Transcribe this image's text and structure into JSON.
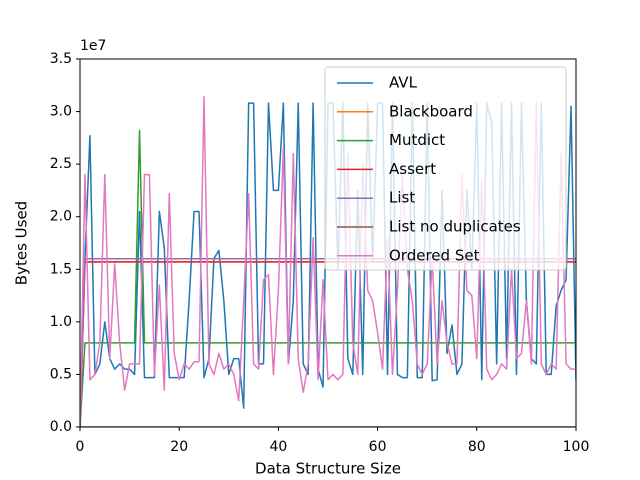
{
  "chart_data": {
    "type": "line",
    "x_label": "Data Structure Size",
    "y_label": "Bytes Used",
    "y_offset_label": "1e7",
    "xlim": [
      0,
      100
    ],
    "xticks": [
      0,
      20,
      40,
      60,
      80,
      100
    ],
    "ylim": [
      0,
      3.5
    ],
    "yticks": [
      {
        "value": 0,
        "label": "0.0"
      },
      0.5,
      {
        "value": 1,
        "label": "1.0"
      },
      1.5,
      {
        "value": 2,
        "label": "2.0"
      },
      2.5,
      {
        "value": 3,
        "label": "3.0"
      },
      3.5
    ],
    "legend": "upper right",
    "x": [
      0,
      1,
      2,
      3,
      4,
      5,
      6,
      7,
      8,
      9,
      10,
      11,
      12,
      13,
      14,
      15,
      16,
      17,
      18,
      19,
      20,
      21,
      22,
      23,
      24,
      25,
      26,
      27,
      28,
      29,
      30,
      31,
      32,
      33,
      34,
      35,
      36,
      37,
      38,
      39,
      40,
      41,
      42,
      43,
      44,
      45,
      46,
      47,
      48,
      49,
      50,
      51,
      52,
      53,
      54,
      55,
      56,
      57,
      58,
      59,
      60,
      61,
      62,
      63,
      64,
      65,
      66,
      67,
      68,
      69,
      70,
      71,
      72,
      73,
      74,
      75,
      76,
      77,
      78,
      79,
      80,
      81,
      82,
      83,
      84,
      85,
      86,
      87,
      88,
      89,
      90,
      91,
      92,
      93,
      94,
      95,
      96,
      97,
      98,
      99,
      100
    ],
    "series": [
      {
        "name": "AVL",
        "color": "#1f77b4",
        "values": [
          0,
          1.6,
          2.77,
          0.5,
          0.6,
          1.0,
          0.65,
          0.55,
          0.6,
          0.55,
          0.55,
          0.5,
          2.05,
          0.47,
          0.47,
          0.47,
          2.05,
          1.7,
          0.47,
          0.47,
          0.47,
          0.47,
          1.2,
          2.05,
          2.05,
          0.47,
          0.65,
          1.6,
          1.68,
          1.2,
          0.5,
          0.65,
          0.65,
          0.18,
          3.08,
          3.08,
          0.6,
          0.6,
          3.08,
          2.25,
          2.25,
          3.08,
          0.6,
          1.2,
          3.08,
          0.6,
          0.5,
          3.08,
          0.55,
          0.38,
          3.08,
          3.08,
          1.5,
          3.08,
          0.65,
          0.5,
          2.25,
          0.5,
          3.08,
          1.57,
          3.08,
          3.08,
          0.5,
          3.08,
          0.5,
          0.47,
          0.47,
          3.08,
          0.47,
          0.47,
          3.08,
          0.44,
          0.45,
          2.25,
          0.7,
          0.97,
          0.5,
          0.6,
          2.25,
          1.5,
          3.08,
          0.45,
          3.08,
          2.9,
          0.6,
          3.08,
          0.65,
          3.08,
          0.5,
          3.08,
          1.2,
          0.65,
          0.6,
          3.08,
          0.5,
          0.5,
          1.15,
          1.3,
          1.4,
          3.05,
          0.45
        ]
      },
      {
        "name": "Blackboard",
        "color": "#ff7f0e",
        "values": [
          0,
          1.57,
          1.57,
          1.57,
          1.57,
          1.57,
          1.57,
          1.57,
          1.57,
          1.57,
          1.57,
          1.57,
          1.57,
          1.57,
          1.57,
          1.57,
          1.57,
          1.57,
          1.57,
          1.57,
          1.57,
          1.57,
          1.57,
          1.57,
          1.57,
          1.57,
          1.57,
          1.57,
          1.57,
          1.57,
          1.57,
          1.57,
          1.57,
          1.57,
          1.57,
          1.57,
          1.57,
          1.57,
          1.57,
          1.57,
          1.57,
          1.57,
          1.57,
          1.57,
          1.57,
          1.57,
          1.57,
          1.57,
          1.57,
          1.57,
          1.57,
          1.57,
          1.57,
          1.57,
          1.57,
          1.57,
          1.57,
          1.57,
          1.57,
          1.57,
          1.57,
          1.57,
          1.57,
          1.57,
          1.57,
          1.57,
          1.57,
          1.57,
          1.57,
          1.57,
          1.57,
          1.57,
          1.57,
          1.57,
          1.57,
          1.57,
          1.57,
          1.57,
          1.57,
          1.57,
          1.57,
          1.57,
          1.57,
          1.57,
          1.57,
          1.57,
          1.57,
          1.57,
          1.57,
          1.57,
          1.57,
          1.57,
          1.57,
          1.57,
          1.57,
          1.57,
          1.57,
          1.57,
          1.57,
          1.57,
          1.57
        ]
      },
      {
        "name": "Mutdict",
        "color": "#2ca02c",
        "values": [
          0,
          0.8,
          0.8,
          0.8,
          0.8,
          0.8,
          0.8,
          0.8,
          0.8,
          0.8,
          0.8,
          0.8,
          2.82,
          0.8,
          0.8,
          0.8,
          0.8,
          0.8,
          0.8,
          0.8,
          0.8,
          0.8,
          0.8,
          0.8,
          0.8,
          0.8,
          0.8,
          0.8,
          0.8,
          0.8,
          0.8,
          0.8,
          0.8,
          0.8,
          0.8,
          0.8,
          0.8,
          0.8,
          0.8,
          0.8,
          0.8,
          0.8,
          0.8,
          0.8,
          0.8,
          0.8,
          0.8,
          0.8,
          0.8,
          0.8,
          0.8,
          0.8,
          0.8,
          0.8,
          0.8,
          0.8,
          0.8,
          0.8,
          0.8,
          0.8,
          0.8,
          0.8,
          0.8,
          0.8,
          0.8,
          0.8,
          0.8,
          0.8,
          0.8,
          0.8,
          0.8,
          0.8,
          0.8,
          0.8,
          0.8,
          0.8,
          0.8,
          0.8,
          0.8,
          0.8,
          0.8,
          0.8,
          0.8,
          0.8,
          0.8,
          0.8,
          0.8,
          0.8,
          0.8,
          0.8,
          0.8,
          0.8,
          0.8,
          0.8,
          0.8,
          0.8,
          0.8,
          0.8,
          0.8,
          0.8,
          0.8
        ]
      },
      {
        "name": "Assert",
        "color": "#d62728",
        "values": [
          0,
          1.57,
          1.57,
          1.57,
          1.57,
          1.57,
          1.57,
          1.57,
          1.57,
          1.57,
          1.57,
          1.57,
          1.57,
          1.57,
          1.57,
          1.57,
          1.57,
          1.57,
          1.57,
          1.57,
          1.57,
          1.57,
          1.57,
          1.57,
          1.57,
          1.57,
          1.57,
          1.57,
          1.57,
          1.57,
          1.57,
          1.57,
          1.57,
          1.57,
          1.57,
          1.57,
          1.57,
          1.57,
          1.57,
          1.57,
          1.57,
          1.57,
          1.57,
          1.57,
          1.57,
          1.57,
          1.57,
          1.57,
          1.57,
          1.57,
          1.57,
          1.57,
          1.57,
          1.57,
          1.57,
          1.57,
          1.57,
          1.57,
          1.57,
          1.57,
          1.57,
          1.57,
          1.57,
          1.57,
          1.57,
          1.57,
          1.57,
          1.57,
          1.57,
          1.57,
          1.57,
          1.57,
          1.57,
          1.57,
          1.57,
          1.57,
          1.57,
          1.57,
          1.57,
          1.57,
          1.57,
          1.57,
          1.57,
          1.57,
          1.57,
          1.57,
          1.57,
          1.57,
          1.57,
          1.57,
          1.57,
          1.57,
          1.57,
          1.57,
          1.57,
          1.57,
          1.57,
          1.57,
          1.57,
          1.57,
          1.57
        ]
      },
      {
        "name": "List",
        "color": "#9467bd",
        "values": [
          0,
          1.6,
          1.6,
          1.6,
          1.6,
          1.6,
          1.6,
          1.6,
          1.6,
          1.6,
          1.6,
          1.6,
          1.6,
          1.6,
          1.6,
          1.6,
          1.6,
          1.6,
          1.6,
          1.6,
          1.6,
          1.6,
          1.6,
          1.6,
          1.6,
          1.6,
          1.6,
          1.6,
          1.6,
          1.6,
          1.6,
          1.6,
          1.6,
          1.6,
          1.6,
          1.6,
          1.6,
          1.6,
          1.6,
          1.6,
          1.6,
          1.6,
          1.6,
          1.6,
          1.6,
          1.6,
          1.6,
          1.6,
          1.6,
          1.6,
          1.6,
          1.6,
          1.6,
          1.6,
          1.6,
          1.6,
          1.6,
          1.6,
          1.6,
          1.6,
          1.6,
          1.6,
          1.6,
          1.6,
          1.6,
          1.6,
          1.6,
          1.6,
          1.6,
          1.6,
          1.6,
          1.6,
          1.6,
          1.6,
          1.6,
          1.6,
          1.6,
          1.6,
          1.6,
          1.6,
          1.6,
          1.6,
          1.6,
          1.6,
          1.6,
          1.6,
          1.6,
          1.6,
          1.6,
          1.6,
          1.6,
          1.6,
          1.6,
          1.6,
          1.6,
          1.6,
          1.6,
          1.6,
          1.6,
          1.6,
          1.6
        ]
      },
      {
        "name": "List no duplicates",
        "color": "#8c564b",
        "values": [
          0,
          0,
          0,
          0,
          0,
          0,
          0,
          0,
          0,
          0,
          0,
          0,
          0,
          0,
          0,
          0,
          0,
          0,
          0,
          0,
          0,
          0,
          0,
          0,
          0,
          0,
          0,
          0,
          0,
          0,
          0,
          0,
          0,
          0,
          0,
          0,
          0,
          0,
          0,
          0,
          0,
          0,
          0,
          0,
          0,
          0,
          0,
          0,
          0,
          0,
          0,
          0,
          0,
          0,
          0,
          0,
          0,
          0,
          0,
          0,
          0,
          0,
          0,
          0,
          0,
          0,
          0,
          0,
          0,
          0,
          0,
          0,
          0,
          0,
          0,
          0,
          0,
          0,
          0,
          0,
          0,
          0,
          0,
          0,
          0,
          0,
          0,
          0,
          0,
          0,
          0,
          0,
          0,
          0,
          0,
          0,
          0,
          0,
          0,
          0,
          0
        ]
      },
      {
        "name": "Ordered Set",
        "color": "#e377c2",
        "values": [
          0,
          2.4,
          0.45,
          0.5,
          0.8,
          2.4,
          0.65,
          1.55,
          0.8,
          0.35,
          0.6,
          0.6,
          0.6,
          2.4,
          2.4,
          0.5,
          1.35,
          0.35,
          2.22,
          0.7,
          0.45,
          0.6,
          0.55,
          0.62,
          0.62,
          3.14,
          0.6,
          0.5,
          0.7,
          0.55,
          0.6,
          0.5,
          0.25,
          1.2,
          2.22,
          0.6,
          0.55,
          1.4,
          1.45,
          0.5,
          1.3,
          2.65,
          0.6,
          2.6,
          0.65,
          0.33,
          0.6,
          1.8,
          0.45,
          1.4,
          0.45,
          0.5,
          0.45,
          0.5,
          2.6,
          0.8,
          0.5,
          2.5,
          1.3,
          1.2,
          0.9,
          0.55,
          1.8,
          0.5,
          1.3,
          2.4,
          1.5,
          1.2,
          0.6,
          0.5,
          0.6,
          1.6,
          0.6,
          1.2,
          0.8,
          0.6,
          0.6,
          2.4,
          1.3,
          1.25,
          0.65,
          2.35,
          0.55,
          0.45,
          0.5,
          0.6,
          0.55,
          1.5,
          0.65,
          0.7,
          1.2,
          0.6,
          3.1,
          0.6,
          0.5,
          0.6,
          0.55,
          2.6,
          0.6,
          0.55,
          0.55
        ]
      }
    ]
  }
}
